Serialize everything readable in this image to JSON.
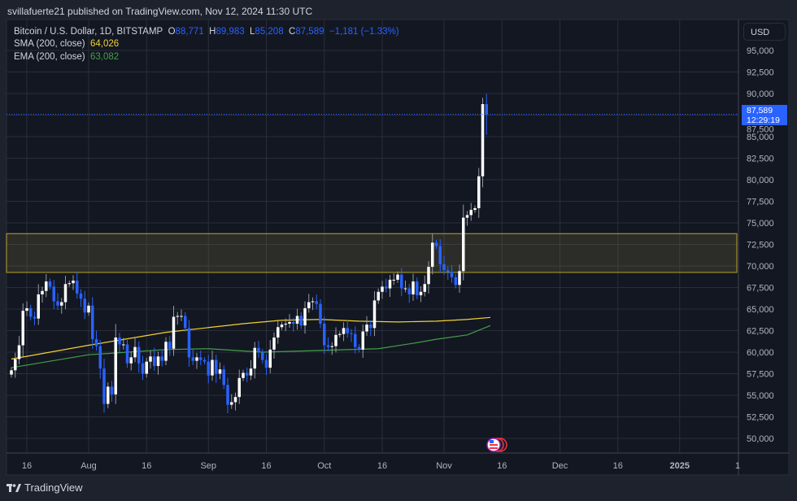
{
  "header": {
    "published": "svillafuerte21 published on TradingView.com, Nov 12, 2024 11:30 UTC"
  },
  "legend": {
    "symbol": "Bitcoin / U.S. Dollar, 1D, BITSTAMP",
    "o_label": "O",
    "o": "88,771",
    "h_label": "H",
    "h": "89,983",
    "l_label": "L",
    "l": "85,208",
    "c_label": "C",
    "c": "87,589",
    "change": "−1,181 (−1.33%)",
    "sma_label": "SMA (200, close)",
    "sma_value": "64,026",
    "ema_label": "EMA (200, close)",
    "ema_value": "63,082"
  },
  "price_axis": {
    "currency": "USD",
    "last_price": "87,589",
    "countdown": "12:29:19"
  },
  "footer": {
    "brand": "TradingView"
  },
  "colors": {
    "up": "#ffffff",
    "down": "#2962ff",
    "sma": "#f2d22e",
    "ema": "#43a047",
    "zone": "#b8a52a",
    "bg": "#131722",
    "grid": "#2a2e39"
  },
  "chart_data": {
    "type": "candlestick",
    "title": "Bitcoin / U.S. Dollar, 1D, BITSTAMP",
    "start_date": "2024-07-12",
    "first_open": 57400,
    "close": [
      57900,
      59200,
      60800,
      64800,
      65100,
      64100,
      63900,
      66700,
      67100,
      68200,
      67600,
      65900,
      65400,
      65800,
      67900,
      68000,
      68300,
      66800,
      66200,
      64600,
      65400,
      61500,
      60700,
      58100,
      54000,
      56000,
      55100,
      61700,
      60900,
      60900,
      58700,
      59400,
      60600,
      58700,
      57500,
      58900,
      59500,
      58400,
      59500,
      59000,
      61200,
      60400,
      64100,
      64200,
      64200,
      62800,
      59400,
      59000,
      59400,
      59100,
      58900,
      57300,
      59100,
      57500,
      58000,
      56200,
      53900,
      54200,
      54800,
      57000,
      57600,
      57300,
      58100,
      60500,
      60000,
      59100,
      58200,
      60300,
      61700,
      62900,
      63200,
      63300,
      63500,
      63300,
      64200,
      63100,
      65100,
      65800,
      65900,
      65600,
      63300,
      60800,
      60600,
      60700,
      62000,
      62100,
      62800,
      62200,
      62100,
      60600,
      60300,
      62400,
      63200,
      62800,
      66000,
      67000,
      67600,
      67400,
      68400,
      68400,
      69000,
      67400,
      67400,
      66700,
      68200,
      66600,
      67000,
      67900,
      69900,
      72700,
      72300,
      70200,
      69500,
      69300,
      68700,
      67800,
      69400,
      75600,
      75900,
      76500,
      76700,
      80400,
      88771,
      87589
    ],
    "last_candle": {
      "o": 88771,
      "h": 89983,
      "l": 85208,
      "c": 87589
    },
    "sma200": {
      "name": "SMA (200, close)",
      "day_index": [
        0,
        20,
        40,
        60,
        70,
        80,
        90,
        100,
        110,
        118,
        124
      ],
      "values": [
        59200,
        60800,
        62300,
        63300,
        63700,
        63800,
        63600,
        63500,
        63600,
        63800,
        64026
      ]
    },
    "ema200": {
      "name": "EMA (200, close)",
      "day_index": [
        0,
        20,
        40,
        51,
        65,
        80,
        95,
        105,
        110,
        118,
        124
      ],
      "values": [
        58200,
        59700,
        60300,
        60400,
        60000,
        60200,
        60400,
        61100,
        61500,
        62000,
        63082
      ]
    },
    "zone": {
      "low": 69250,
      "high": 73750
    },
    "ylim": [
      48000,
      97500
    ],
    "y_ticks": [
      "95,000",
      "92,500",
      "90,000",
      "87,500",
      "85,000",
      "82,500",
      "80,000",
      "77,500",
      "75,000",
      "72,500",
      "70,000",
      "67,500",
      "65,000",
      "62,500",
      "60,000",
      "57,500",
      "55,000",
      "52,500",
      "50,000"
    ],
    "y_tick_values": [
      95000,
      92500,
      90000,
      87500,
      85000,
      82500,
      80000,
      77500,
      75000,
      72500,
      70000,
      67500,
      65000,
      62500,
      60000,
      57500,
      55000,
      52500,
      50000
    ],
    "x_ticks": [
      {
        "label": "16",
        "day": 4
      },
      {
        "label": "Aug",
        "day": 20
      },
      {
        "label": "16",
        "day": 35
      },
      {
        "label": "Sep",
        "day": 51
      },
      {
        "label": "16",
        "day": 66
      },
      {
        "label": "Oct",
        "day": 81
      },
      {
        "label": "16",
        "day": 96
      },
      {
        "label": "Nov",
        "day": 112
      },
      {
        "label": "16",
        "day": 127
      },
      {
        "label": "Dec",
        "day": 142
      },
      {
        "label": "16",
        "day": 157
      },
      {
        "label": "2025",
        "day": 173
      },
      {
        "label": "1",
        "day": 188
      }
    ]
  }
}
